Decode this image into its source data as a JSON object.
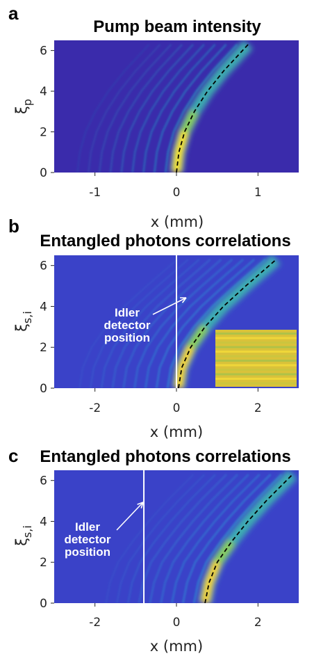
{
  "chart_data": [
    {
      "panel": "a",
      "type": "heatmap",
      "title": "Pump beam intensity",
      "xlabel": "x (mm)",
      "ylabel": "ξp",
      "ylabel_main": "ξ",
      "ylabel_sub": "p",
      "xlim": [
        -1.5,
        1.5
      ],
      "ylim": [
        0,
        6.5
      ],
      "xticks": [
        -1,
        0,
        1
      ],
      "xtick_labels": [
        "-1",
        "0",
        "1"
      ],
      "yticks": [
        0,
        2,
        4,
        6
      ],
      "ytick_labels": [
        "0",
        "2",
        "4",
        "6"
      ],
      "colormap": "parula",
      "colors": {
        "background": "#3a2bab",
        "peak": "#f9e21f",
        "mid": "#1fa1c9"
      },
      "curve": {
        "style": "dashed",
        "color": "#000000",
        "x": [
          0.0,
          0.03,
          0.1,
          0.22,
          0.38,
          0.58,
          0.88
        ],
        "y": [
          0.0,
          1.0,
          2.0,
          3.0,
          4.0,
          5.0,
          6.3
        ]
      },
      "annotation": null,
      "inset": false
    },
    {
      "panel": "b",
      "type": "heatmap",
      "title": "Entangled photons correlations",
      "xlabel": "x (mm)",
      "ylabel": "ξs,i",
      "ylabel_main": "ξ",
      "ylabel_sub": "s,i",
      "xlim": [
        -3,
        3
      ],
      "ylim": [
        0,
        6.5
      ],
      "xticks": [
        -2,
        0,
        2
      ],
      "xtick_labels": [
        "-2",
        "0",
        "2"
      ],
      "yticks": [
        0,
        2,
        4,
        6
      ],
      "ytick_labels": [
        "0",
        "2",
        "4",
        "6"
      ],
      "colormap": "parula",
      "colors": {
        "background": "#3a42c8",
        "peak": "#f6d12e",
        "mid": "#2a9cd8"
      },
      "curve": {
        "style": "dashed",
        "color": "#000000",
        "x": [
          0.05,
          0.13,
          0.35,
          0.7,
          1.15,
          1.7,
          2.45
        ],
        "y": [
          0.0,
          1.0,
          2.0,
          3.0,
          4.0,
          5.0,
          6.3
        ]
      },
      "detector_x": 0.0,
      "annotation": {
        "lines": [
          "Idler",
          "detector",
          "position"
        ],
        "color": "#ffffff"
      },
      "inset": true
    },
    {
      "panel": "c",
      "type": "heatmap",
      "title": "Entangled photons correlations",
      "xlabel": "x (mm)",
      "ylabel": "ξs,i",
      "ylabel_main": "ξ",
      "ylabel_sub": "s,i",
      "xlim": [
        -3,
        3
      ],
      "ylim": [
        0,
        6.5
      ],
      "xticks": [
        -2,
        0,
        2
      ],
      "xtick_labels": [
        "-2",
        "0",
        "2"
      ],
      "yticks": [
        0,
        2,
        4,
        6
      ],
      "ytick_labels": [
        "0",
        "2",
        "4",
        "6"
      ],
      "colormap": "parula",
      "colors": {
        "background": "#3a42c8",
        "peak": "#f6d12e",
        "mid": "#2a9cd8"
      },
      "curve": {
        "style": "dashed",
        "color": "#000000",
        "x": [
          0.7,
          0.8,
          1.0,
          1.35,
          1.75,
          2.2,
          2.85
        ],
        "y": [
          0.0,
          1.0,
          2.0,
          3.0,
          4.0,
          5.0,
          6.3
        ]
      },
      "detector_x": -0.8,
      "annotation": {
        "lines": [
          "Idler",
          "detector",
          "position"
        ],
        "color": "#ffffff"
      },
      "inset": false
    }
  ]
}
